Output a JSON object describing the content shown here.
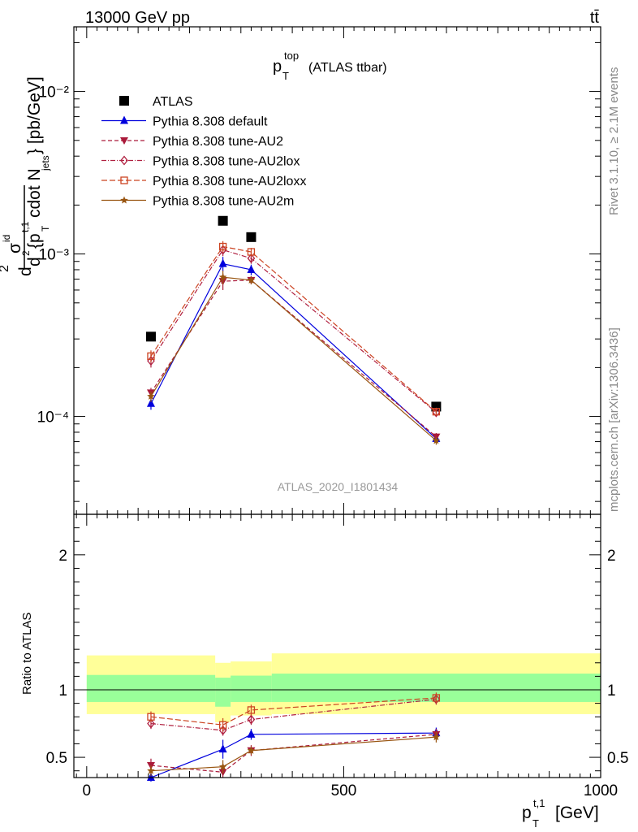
{
  "header": {
    "energy": "13000 GeV pp",
    "process": "tt̄"
  },
  "side_text": {
    "rivet": "Rivet 3.1.10, ≥ 2.1M events",
    "source": "mcplots.cern.ch [arXiv:1306.3436]"
  },
  "chart_data": {
    "type": "line",
    "title": "p_T^top (ATLAS ttbar)",
    "title_main": "p",
    "title_sup": "top",
    "title_sub": "T",
    "title_rest": "(ATLAS ttbar)",
    "analysis_label": "ATLAS_2020_I1801434",
    "xlabel_main": "p",
    "xlabel_sup": "t,1",
    "xlabel_sub": "T",
    "xlabel_unit": "[GeV]",
    "ylabel_top": "d²σ^{id} / d² {p_T^{t,1} cdot N_jets} [pb/GeV]",
    "ylabel_ratio": "Ratio to ATLAS",
    "xlim": [
      -25,
      1000
    ],
    "ylim_main": [
      2.5e-05,
      0.025
    ],
    "ylim_ratio": [
      0.35,
      2.3
    ],
    "x_ticks": [
      "0",
      "500",
      "1000"
    ],
    "y_ticks_main": [
      "10⁻⁴",
      "10⁻³",
      "10⁻²"
    ],
    "y_ticks_ratio": [
      "0.5",
      "1",
      "2"
    ],
    "x": [
      125,
      265,
      320,
      680
    ],
    "bin_edges": [
      0,
      250,
      280,
      360,
      1000
    ],
    "data": {
      "name": "ATLAS",
      "values": [
        0.00031,
        0.0016,
        0.00127,
        0.000115
      ],
      "ratio_band_inner": [
        [
          0.91,
          1.11
        ],
        [
          0.875,
          1.09
        ],
        [
          0.91,
          1.105
        ],
        [
          0.91,
          1.12
        ]
      ],
      "ratio_band_outer": [
        [
          0.82,
          1.255
        ],
        [
          0.76,
          1.2
        ],
        [
          0.81,
          1.21
        ],
        [
          0.82,
          1.27
        ]
      ]
    },
    "series": [
      {
        "name": "Pythia 8.308 default",
        "color": "#0000dd",
        "dash": "",
        "marker": "triangle-up",
        "values": [
          0.00012,
          0.00087,
          0.0008,
          7.3e-05
        ],
        "errors": [
          1e-05,
          9e-05,
          6e-05,
          4e-06
        ],
        "ratio": [
          0.35,
          0.56,
          0.67,
          0.68
        ],
        "ratio_err": [
          0.03,
          0.07,
          0.04,
          0.04
        ]
      },
      {
        "name": "Pythia 8.308 tune-AU2",
        "color": "#aa1a3a",
        "dash": "5,3",
        "marker": "triangle-down",
        "values": [
          0.00014,
          0.00068,
          0.00069,
          7.5e-05
        ],
        "errors": [
          1e-05,
          8e-05,
          4e-05,
          4e-06
        ],
        "ratio": [
          0.44,
          0.39,
          0.55,
          0.67
        ],
        "ratio_err": [
          0.05,
          0.04,
          0.04,
          0.04
        ]
      },
      {
        "name": "Pythia 8.308 tune-AU2lox",
        "color": "#b02040",
        "dash": "6,2,1,2",
        "marker": "diamond-open",
        "values": [
          0.00022,
          0.00106,
          0.00094,
          0.000106
        ],
        "errors": [
          2e-05,
          9e-05,
          7e-05,
          5e-06
        ],
        "ratio": [
          0.75,
          0.7,
          0.78,
          0.93
        ],
        "ratio_err": [
          0.04,
          0.04,
          0.04,
          0.04
        ]
      },
      {
        "name": "Pythia 8.308 tune-AU2loxx",
        "color": "#cc4422",
        "dash": "7,3",
        "marker": "square-open",
        "values": [
          0.000235,
          0.00111,
          0.00103,
          0.000107
        ],
        "errors": [
          2e-05,
          9e-05,
          6e-05,
          5e-06
        ],
        "ratio": [
          0.8,
          0.74,
          0.85,
          0.94
        ],
        "ratio_err": [
          0.04,
          0.05,
          0.04,
          0.04
        ]
      },
      {
        "name": "Pythia 8.308 tune-AU2m",
        "color": "#995511",
        "dash": "",
        "marker": "star",
        "values": [
          0.000133,
          0.00072,
          0.00069,
          7.1e-05
        ],
        "errors": [
          1e-05,
          7e-05,
          4e-05,
          4e-06
        ],
        "ratio": [
          0.4,
          0.43,
          0.55,
          0.65
        ],
        "ratio_err": [
          0.04,
          0.05,
          0.03,
          0.04
        ]
      }
    ]
  }
}
